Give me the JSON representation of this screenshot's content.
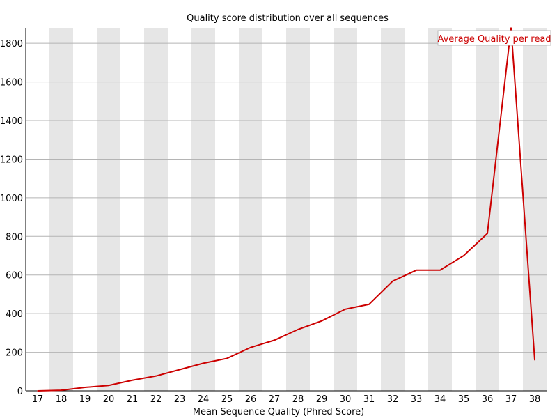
{
  "chart_data": {
    "type": "line",
    "title": "Quality score distribution over all sequences",
    "xlabel": "Mean Sequence Quality (Phred Score)",
    "ylabel": "",
    "x": [
      17,
      18,
      19,
      20,
      21,
      22,
      23,
      24,
      25,
      26,
      27,
      28,
      29,
      30,
      31,
      32,
      33,
      34,
      35,
      36,
      37,
      38
    ],
    "ylim": [
      0,
      1880
    ],
    "y_ticks": [
      0,
      200,
      400,
      600,
      800,
      1000,
      1200,
      1400,
      1600,
      1800
    ],
    "grid": true,
    "alternating_column_shading": true,
    "legend_placement": "top-right",
    "series": [
      {
        "name": "Average Quality per read",
        "color": "#cc0000",
        "values": [
          0,
          3,
          18,
          28,
          55,
          77,
          110,
          143,
          168,
          225,
          262,
          318,
          362,
          423,
          448,
          568,
          625,
          625,
          700,
          815,
          1880,
          160
        ]
      }
    ]
  }
}
